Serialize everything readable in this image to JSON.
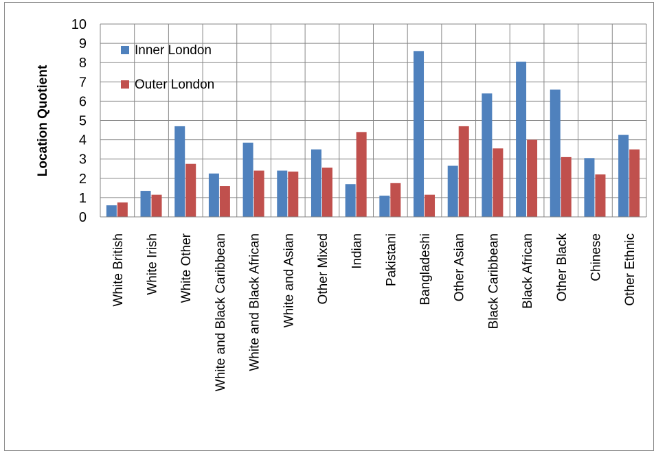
{
  "chart_data": {
    "type": "bar",
    "title": "",
    "xlabel": "",
    "ylabel": "Location Quotient",
    "ylim": [
      0,
      10
    ],
    "yticks": [
      "0",
      "1",
      "2",
      "3",
      "4",
      "5",
      "6",
      "7",
      "8",
      "9",
      "10"
    ],
    "grid": true,
    "legend_position": "top-left",
    "categories": [
      "White British",
      "White Irish",
      "White Other",
      "White and Black Caribbean",
      "White and Black African",
      "White and Asian",
      "Other Mixed",
      "Indian",
      "Pakistani",
      "Bangladeshi",
      "Other Asian",
      "Black Caribbean",
      "Black African",
      "Other Black",
      "Chinese",
      "Other Ethnic"
    ],
    "series": [
      {
        "name": "Inner London",
        "color": "#4f81bd",
        "values": [
          0.6,
          1.35,
          4.7,
          2.25,
          3.85,
          2.4,
          3.5,
          1.7,
          1.1,
          8.6,
          2.65,
          6.4,
          8.05,
          6.6,
          3.05,
          4.25
        ]
      },
      {
        "name": "Outer London",
        "color": "#c0504d",
        "values": [
          0.75,
          1.15,
          2.75,
          1.6,
          2.4,
          2.35,
          2.55,
          4.4,
          1.75,
          1.15,
          4.7,
          3.55,
          4.0,
          3.1,
          2.2,
          3.5
        ]
      }
    ]
  }
}
